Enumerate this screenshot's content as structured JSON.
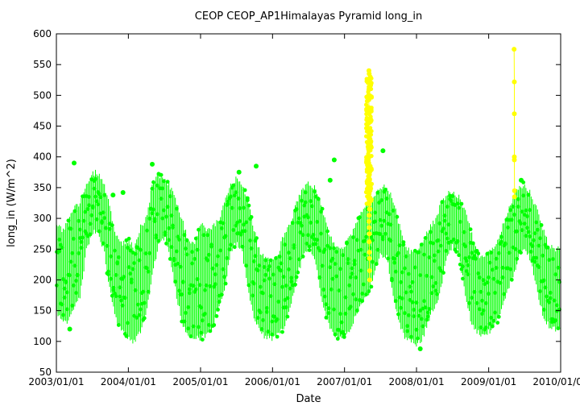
{
  "chart_data": {
    "type": "scatter",
    "title": "CEOP CEOP_AP1Himalayas Pyramid  long_in",
    "xlabel": "Date",
    "ylabel": "long_in (W/m^2)",
    "xlim": [
      "2003/01/01",
      "2010/01/01"
    ],
    "ylim": [
      50,
      600
    ],
    "x_ticks": [
      "2003/01/01",
      "2004/01/01",
      "2005/01/01",
      "2006/01/01",
      "2007/01/01",
      "2008/01/01",
      "2009/01/01",
      "2010/01/01"
    ],
    "y_ticks": [
      50,
      100,
      150,
      200,
      250,
      300,
      350,
      400,
      450,
      500,
      550,
      600
    ],
    "grid": false,
    "colors": {
      "main": "#00ff00",
      "flagged": "#ffff00",
      "axis": "#000000"
    },
    "series": [
      {
        "color": "#00ff00",
        "marker": "circle",
        "description_points": "daily min/max envelope (date, low, high) in W/m^2",
        "envelope": [
          [
            "2003/01/01",
            145,
            300
          ],
          [
            "2003/02/01",
            125,
            285
          ],
          [
            "2003/03/01",
            125,
            300
          ],
          [
            "2003/04/01",
            150,
            320
          ],
          [
            "2003/05/01",
            170,
            330
          ],
          [
            "2003/06/01",
            240,
            360
          ],
          [
            "2003/07/01",
            275,
            380
          ],
          [
            "2003/08/01",
            270,
            378
          ],
          [
            "2003/09/01",
            240,
            360
          ],
          [
            "2003/10/01",
            175,
            320
          ],
          [
            "2003/11/01",
            130,
            275
          ],
          [
            "2003/12/01",
            110,
            265
          ],
          [
            "2004/01/01",
            100,
            270
          ],
          [
            "2004/02/01",
            95,
            255
          ],
          [
            "2004/03/01",
            110,
            290
          ],
          [
            "2004/04/01",
            140,
            305
          ],
          [
            "2004/05/01",
            205,
            360
          ],
          [
            "2004/06/01",
            250,
            375
          ],
          [
            "2004/07/01",
            265,
            370
          ],
          [
            "2004/08/01",
            230,
            355
          ],
          [
            "2004/09/01",
            170,
            330
          ],
          [
            "2004/10/01",
            125,
            300
          ],
          [
            "2004/11/01",
            105,
            270
          ],
          [
            "2004/12/01",
            100,
            265
          ],
          [
            "2005/01/01",
            100,
            300
          ],
          [
            "2005/02/01",
            105,
            285
          ],
          [
            "2005/03/01",
            115,
            290
          ],
          [
            "2005/04/01",
            150,
            300
          ],
          [
            "2005/05/01",
            175,
            330
          ],
          [
            "2005/06/01",
            240,
            360
          ],
          [
            "2005/07/01",
            255,
            370
          ],
          [
            "2005/08/01",
            240,
            360
          ],
          [
            "2005/09/01",
            175,
            330
          ],
          [
            "2005/10/01",
            130,
            285
          ],
          [
            "2005/11/01",
            110,
            245
          ],
          [
            "2005/12/01",
            100,
            240
          ],
          [
            "2006/01/01",
            100,
            235
          ],
          [
            "2006/02/01",
            105,
            250
          ],
          [
            "2006/03/01",
            120,
            280
          ],
          [
            "2006/04/01",
            150,
            295
          ],
          [
            "2006/05/01",
            195,
            330
          ],
          [
            "2006/06/01",
            230,
            350
          ],
          [
            "2006/07/01",
            250,
            360
          ],
          [
            "2006/08/01",
            235,
            355
          ],
          [
            "2006/09/01",
            175,
            330
          ],
          [
            "2006/10/01",
            130,
            295
          ],
          [
            "2006/11/01",
            110,
            265
          ],
          [
            "2006/12/01",
            100,
            255
          ],
          [
            "2007/01/01",
            105,
            260
          ],
          [
            "2007/02/01",
            110,
            275
          ],
          [
            "2007/03/01",
            140,
            300
          ],
          [
            "2007/04/01",
            160,
            320
          ],
          [
            "2007/05/01",
            170,
            330
          ],
          [
            "2007/06/01",
            205,
            340
          ],
          [
            "2007/07/01",
            235,
            355
          ],
          [
            "2007/08/01",
            235,
            355
          ],
          [
            "2007/09/01",
            180,
            340
          ],
          [
            "2007/10/01",
            130,
            300
          ],
          [
            "2007/11/01",
            100,
            260
          ],
          [
            "2007/12/01",
            95,
            250
          ],
          [
            "2008/01/01",
            90,
            255
          ],
          [
            "2008/02/01",
            100,
            265
          ],
          [
            "2008/03/01",
            130,
            285
          ],
          [
            "2008/04/01",
            150,
            300
          ],
          [
            "2008/05/01",
            175,
            325
          ],
          [
            "2008/06/01",
            230,
            345
          ],
          [
            "2008/07/01",
            250,
            345
          ],
          [
            "2008/08/01",
            240,
            340
          ],
          [
            "2008/09/01",
            180,
            320
          ],
          [
            "2008/10/01",
            130,
            285
          ],
          [
            "2008/11/01",
            110,
            250
          ],
          [
            "2008/12/01",
            105,
            240
          ],
          [
            "2009/01/01",
            110,
            250
          ],
          [
            "2009/02/01",
            120,
            255
          ],
          [
            "2009/03/01",
            140,
            280
          ],
          [
            "2009/04/01",
            170,
            310
          ],
          [
            "2009/05/01",
            200,
            335
          ],
          [
            "2009/06/01",
            230,
            355
          ],
          [
            "2009/07/01",
            245,
            360
          ],
          [
            "2009/08/01",
            230,
            345
          ],
          [
            "2009/09/01",
            180,
            320
          ],
          [
            "2009/10/01",
            140,
            290
          ],
          [
            "2009/11/01",
            120,
            260
          ],
          [
            "2009/12/01",
            115,
            255
          ],
          [
            "2010/01/01",
            115,
            255
          ]
        ],
        "outliers": [
          [
            "2003/10/15",
            338
          ],
          [
            "2003/12/05",
            342
          ],
          [
            "2004/05/01",
            388
          ],
          [
            "2005/07/15",
            375
          ],
          [
            "2005/10/10",
            385
          ],
          [
            "2006/10/20",
            362
          ],
          [
            "2006/11/10",
            395
          ],
          [
            "2007/07/15",
            410
          ],
          [
            "2009/06/15",
            362
          ],
          [
            "2003/04/01",
            390
          ],
          [
            "2003/03/10",
            120
          ],
          [
            "2008/01/20",
            88
          ]
        ]
      },
      {
        "color": "#ffff00",
        "marker": "circle",
        "points": [
          [
            "2007/05/05",
            540
          ],
          [
            "2007/05/06",
            535
          ],
          [
            "2007/05/07",
            525
          ],
          [
            "2007/05/05",
            510
          ],
          [
            "2007/05/04",
            495
          ],
          [
            "2007/05/05",
            480
          ],
          [
            "2007/05/06",
            470
          ],
          [
            "2007/05/04",
            455
          ],
          [
            "2007/05/05",
            440
          ],
          [
            "2007/05/06",
            430
          ],
          [
            "2007/05/03",
            420
          ],
          [
            "2007/05/05",
            410
          ],
          [
            "2007/05/06",
            400
          ],
          [
            "2007/05/04",
            390
          ],
          [
            "2007/05/05",
            380
          ],
          [
            "2007/05/06",
            370
          ],
          [
            "2007/05/03",
            360
          ],
          [
            "2007/05/05",
            350
          ],
          [
            "2007/05/06",
            340
          ],
          [
            "2007/05/04",
            332
          ],
          [
            "2007/05/05",
            325
          ],
          [
            "2007/05/07",
            315
          ],
          [
            "2007/05/06",
            305
          ],
          [
            "2007/05/05",
            295
          ],
          [
            "2007/05/06",
            285
          ],
          [
            "2007/05/07",
            275
          ],
          [
            "2007/05/06",
            262
          ],
          [
            "2007/05/07",
            245
          ],
          [
            "2007/05/07",
            235
          ],
          [
            "2007/05/08",
            215
          ],
          [
            "2007/05/08",
            200
          ],
          [
            "2007/05/10",
            315
          ],
          [
            "2007/05/02",
            345
          ],
          [
            "2007/05/03",
            500
          ],
          [
            "2007/05/08",
            330
          ],
          [
            "2009/05/10",
            575
          ],
          [
            "2009/05/11",
            522
          ],
          [
            "2009/05/11",
            470
          ],
          [
            "2009/05/11",
            400
          ],
          [
            "2009/05/11",
            395
          ],
          [
            "2009/05/12",
            345
          ],
          [
            "2009/05/12",
            335
          ]
        ]
      }
    ]
  }
}
